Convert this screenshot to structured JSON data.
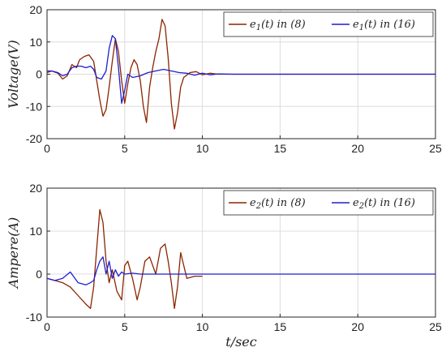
{
  "chart_data": [
    {
      "type": "line",
      "title": "",
      "xlabel": "",
      "ylabel": "Voltage(V)",
      "xlim": [
        0,
        25
      ],
      "ylim": [
        -20,
        20
      ],
      "xticks": [
        0,
        5,
        10,
        15,
        20,
        25
      ],
      "yticks": [
        20,
        10,
        0,
        -10,
        -20
      ],
      "grid": true,
      "legend": "top-right",
      "series": [
        {
          "name": "e1(t) in (8)",
          "color": "#8b2500",
          "x": [
            0,
            0.3,
            0.7,
            1.0,
            1.3,
            1.6,
            1.9,
            2.1,
            2.4,
            2.7,
            3.0,
            3.2,
            3.4,
            3.6,
            3.8,
            4.0,
            4.2,
            4.4,
            4.6,
            4.8,
            5.0,
            5.2,
            5.4,
            5.6,
            5.8,
            6.0,
            6.2,
            6.4,
            6.6,
            6.8,
            7.0,
            7.2,
            7.4,
            7.6,
            7.8,
            8.0,
            8.2,
            8.4,
            8.6,
            8.8,
            9.2,
            9.6,
            10.0,
            10.5,
            11.0,
            12.0,
            14.0,
            18.0,
            22.0,
            25.0
          ],
          "y": [
            0.5,
            1.0,
            0.3,
            -1.5,
            -0.5,
            3.0,
            2.0,
            4.5,
            5.5,
            6.0,
            4.0,
            -2.0,
            -8.0,
            -13.0,
            -11.0,
            -4.0,
            4.0,
            11.0,
            7.0,
            -2.0,
            -9.0,
            -3.0,
            2.0,
            4.5,
            3.0,
            -2.0,
            -10.0,
            -15.0,
            -4.0,
            2.0,
            7.0,
            11.0,
            17.0,
            15.0,
            5.0,
            -9.0,
            -17.0,
            -12.0,
            -4.0,
            -1.0,
            0.5,
            0.8,
            -0.2,
            0.3,
            0,
            0,
            0,
            0,
            0,
            0
          ]
        },
        {
          "name": "e1(t) in (16)",
          "color": "#1f1fcf",
          "x": [
            0,
            0.3,
            0.7,
            1.0,
            1.3,
            1.6,
            1.9,
            2.2,
            2.5,
            2.8,
            3.0,
            3.2,
            3.5,
            3.8,
            4.0,
            4.2,
            4.4,
            4.6,
            4.8,
            5.0,
            5.2,
            5.5,
            6.0,
            6.5,
            7.0,
            7.5,
            8.0,
            8.5,
            9.0,
            9.5,
            10.0,
            10.5,
            11.0,
            12.0,
            14.0,
            18.0,
            22.0,
            25.0
          ],
          "y": [
            1.0,
            1.0,
            0.5,
            -0.5,
            0,
            2.0,
            2.5,
            2.5,
            2.0,
            2.5,
            1.5,
            -1.0,
            -1.5,
            1.0,
            8.0,
            12.0,
            11.0,
            2.0,
            -9.0,
            -5.0,
            0,
            -1.0,
            -0.5,
            0.5,
            1.0,
            1.5,
            1.0,
            0.5,
            0.3,
            -0.3,
            0.3,
            -0.2,
            0.1,
            0,
            0,
            0,
            0,
            0
          ]
        }
      ]
    },
    {
      "type": "line",
      "title": "",
      "xlabel": "t/sec",
      "ylabel": "Ampere(A)",
      "xlim": [
        0,
        25
      ],
      "ylim": [
        -10,
        20
      ],
      "xticks": [
        0,
        5,
        10,
        15,
        20,
        25
      ],
      "yticks": [
        20,
        10,
        0,
        -10
      ],
      "grid": true,
      "legend": "top-right",
      "series": [
        {
          "name": "e2(t) in (8)",
          "color": "#8b2500",
          "x": [
            0,
            0.5,
            1.0,
            1.5,
            2.0,
            2.5,
            2.8,
            3.0,
            3.2,
            3.4,
            3.6,
            3.8,
            4.0,
            4.2,
            4.5,
            4.8,
            5.0,
            5.2,
            5.5,
            5.8,
            6.0,
            6.3,
            6.6,
            7.0,
            7.3,
            7.6,
            7.8,
            8.0,
            8.2,
            8.4,
            8.6,
            8.8,
            9.0,
            9.5,
            10.0
          ],
          "y": [
            -1.0,
            -1.5,
            -2.0,
            -3.0,
            -5.0,
            -7.0,
            -8.0,
            -3.0,
            6.0,
            15.0,
            12.0,
            3.0,
            -2.0,
            1.0,
            -4.0,
            -6.0,
            2.0,
            3.0,
            -1.0,
            -6.0,
            -3.0,
            3.0,
            4.0,
            0,
            6.0,
            7.0,
            3.0,
            -2.0,
            -8.0,
            -3.0,
            5.0,
            2.0,
            -1.0,
            -0.5,
            -0.5
          ]
        },
        {
          "name": "e2(t) in (16)",
          "color": "#1f1fcf",
          "x": [
            0,
            0.5,
            1.0,
            1.5,
            2.0,
            2.5,
            2.8,
            3.0,
            3.2,
            3.4,
            3.6,
            3.8,
            4.0,
            4.2,
            4.4,
            4.6,
            4.8,
            5.0,
            5.5,
            6.0,
            7.0,
            8.0,
            9.0,
            10.0,
            11.0,
            12.0,
            15.0,
            20.0,
            25.0
          ],
          "y": [
            -1.0,
            -1.5,
            -1.0,
            0.5,
            -2.0,
            -2.5,
            -2.0,
            -1.5,
            1.0,
            3.0,
            4.0,
            0,
            3.0,
            -1.0,
            1.0,
            -0.5,
            0.5,
            0,
            0.2,
            0,
            0,
            0,
            0,
            0,
            0,
            0,
            0,
            0,
            0
          ]
        }
      ]
    }
  ]
}
